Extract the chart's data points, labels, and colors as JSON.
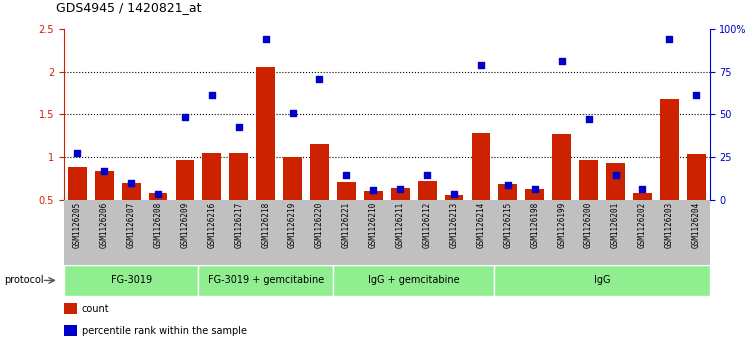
{
  "title": "GDS4945 / 1420821_at",
  "samples": [
    "GSM1126205",
    "GSM1126206",
    "GSM1126207",
    "GSM1126208",
    "GSM1126209",
    "GSM1126216",
    "GSM1126217",
    "GSM1126218",
    "GSM1126219",
    "GSM1126220",
    "GSM1126221",
    "GSM1126210",
    "GSM1126211",
    "GSM1126212",
    "GSM1126213",
    "GSM1126214",
    "GSM1126215",
    "GSM1126198",
    "GSM1126199",
    "GSM1126200",
    "GSM1126201",
    "GSM1126202",
    "GSM1126203",
    "GSM1126204"
  ],
  "bar_values": [
    0.88,
    0.84,
    0.7,
    0.58,
    0.97,
    1.05,
    1.05,
    2.06,
    1.0,
    1.15,
    0.71,
    0.6,
    0.64,
    0.72,
    0.55,
    1.28,
    0.68,
    0.62,
    1.27,
    0.97,
    0.93,
    0.58,
    1.68,
    1.03
  ],
  "dot_values": [
    1.05,
    0.84,
    0.7,
    0.57,
    1.47,
    1.73,
    1.35,
    2.38,
    1.51,
    1.91,
    0.79,
    0.61,
    0.63,
    0.79,
    0.57,
    2.08,
    0.67,
    0.62,
    2.12,
    1.44,
    0.79,
    0.63,
    2.38,
    1.73
  ],
  "bar_color": "#CC2200",
  "dot_color": "#0000CC",
  "ylim_left": [
    0.5,
    2.5
  ],
  "ylim_right": [
    0,
    100
  ],
  "yticks_left": [
    0.5,
    1.0,
    1.5,
    2.0,
    2.5
  ],
  "ytick_labels_left": [
    "0.5",
    "1",
    "1.5",
    "2",
    "2.5"
  ],
  "yticks_right": [
    0,
    25,
    50,
    75,
    100
  ],
  "ytick_labels_right": [
    "0",
    "25",
    "50",
    "75",
    "100%"
  ],
  "groups": [
    {
      "label": "FG-3019",
      "start": 0,
      "end": 5
    },
    {
      "label": "FG-3019 + gemcitabine",
      "start": 5,
      "end": 10
    },
    {
      "label": "IgG + gemcitabine",
      "start": 10,
      "end": 16
    },
    {
      "label": "IgG",
      "start": 16,
      "end": 24
    }
  ],
  "group_color": "#90EE90",
  "group_border_color": "#ffffff",
  "protocol_label": "protocol",
  "tick_bg_color": "#C0C0C0",
  "grid_yticks": [
    1.0,
    1.5,
    2.0
  ],
  "bar_bottom": 0.5,
  "legend_items": [
    {
      "color": "#CC2200",
      "label": "count"
    },
    {
      "color": "#0000CC",
      "label": "percentile rank within the sample"
    }
  ]
}
